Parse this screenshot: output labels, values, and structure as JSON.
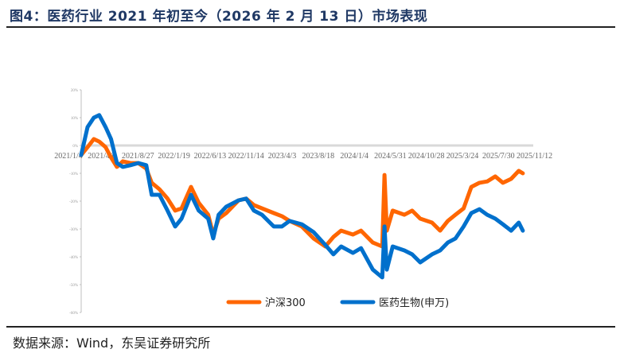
{
  "header": {
    "title": "图4：医药行业 2021 年初至今（2026 年 2 月 13 日）市场表现"
  },
  "footer": {
    "source": "数据来源：Wind，东吴证券研究所"
  },
  "colors": {
    "series_hs300": "#ff6600",
    "series_pharma": "#0070cc",
    "axis": "#bfbfbf",
    "title": "#1f3864"
  },
  "chart_data": {
    "type": "line",
    "title": "医药行业 2021 年初至今（2026 年 2 月 13 日）市场表现",
    "xlabel": "",
    "ylabel": "",
    "ylim": [
      -60,
      20
    ],
    "yticks": [
      "20%",
      "10%",
      "0%",
      "-10%",
      "-20%",
      "-30%",
      "-40%",
      "-50%",
      "-60%"
    ],
    "xticks": [
      "2021/1/4",
      "2021/4/6",
      "2021/8/27",
      "2022/1/19",
      "2022/6/13",
      "2022/11/14",
      "2023/4/3",
      "2023/8/18",
      "2024/1/4",
      "2024/5/31",
      "2024/10/28",
      "2025/3/24",
      "2025/7/30",
      "2025/11/12"
    ],
    "legend_position": "bottom",
    "grid": false,
    "x_index": [
      0,
      1.4,
      2.8,
      4.0,
      5.4,
      6.6,
      7.9,
      9.2,
      10.9,
      12.6,
      14.4,
      15.6,
      17.3,
      19.1,
      20.8,
      22.2,
      24.3,
      26.0,
      28.1,
      29.2,
      30.4,
      32.1,
      34.8,
      36.5,
      38.2,
      40.0,
      42.6,
      44.4,
      46.1,
      48.8,
      51.4,
      54.0,
      55.8,
      57.5,
      60.1,
      61.9,
      64.5,
      66.6,
      67.1,
      67.6,
      68.9,
      71.5,
      73.2,
      75.0,
      77.6,
      79.4,
      81.1,
      82.8,
      84.6,
      86.3,
      88.1,
      89.8,
      91.6,
      93.3,
      95.1,
      96.8,
      97.7
    ],
    "series": [
      {
        "name": "沪深300",
        "color": "#ff6600",
        "values": [
          -3.4,
          -0.6,
          2.3,
          1.4,
          -0.6,
          -4.3,
          -7.7,
          -5.7,
          -6.3,
          -6.3,
          -8.3,
          -13.4,
          -15.7,
          -19.1,
          -23.4,
          -22.6,
          -14.9,
          -20.6,
          -24.9,
          -32.0,
          -26.3,
          -24.3,
          -19.7,
          -19.1,
          -21.4,
          -22.6,
          -24.3,
          -25.4,
          -27.1,
          -29.1,
          -33.4,
          -36.3,
          -32.9,
          -30.6,
          -32.0,
          -30.6,
          -34.9,
          -36.3,
          -10.6,
          -30.6,
          -23.4,
          -24.9,
          -23.4,
          -26.3,
          -27.7,
          -30.6,
          -27.1,
          -24.9,
          -22.6,
          -14.9,
          -13.4,
          -12.9,
          -11.1,
          -13.4,
          -12.0,
          -9.1,
          -10.0
        ]
      },
      {
        "name": "医药生物(申万)",
        "color": "#0070cc",
        "values": [
          -3.4,
          6.6,
          10.0,
          10.9,
          6.6,
          2.3,
          -6.3,
          -7.7,
          -7.1,
          -6.3,
          -7.1,
          -17.7,
          -17.7,
          -23.4,
          -29.1,
          -26.3,
          -17.7,
          -23.4,
          -26.3,
          -33.4,
          -24.9,
          -22.0,
          -19.7,
          -19.1,
          -23.4,
          -24.9,
          -29.1,
          -29.1,
          -27.1,
          -28.3,
          -31.1,
          -35.7,
          -39.1,
          -36.3,
          -38.6,
          -36.9,
          -44.6,
          -47.4,
          -29.1,
          -44.6,
          -36.3,
          -37.7,
          -39.1,
          -42.0,
          -39.1,
          -37.7,
          -34.9,
          -33.4,
          -29.1,
          -24.3,
          -22.9,
          -24.9,
          -26.3,
          -28.3,
          -30.6,
          -27.7,
          -30.6
        ]
      }
    ]
  },
  "legend": {
    "items": [
      {
        "label": "沪深300"
      },
      {
        "label": "医药生物(申万)"
      }
    ]
  }
}
